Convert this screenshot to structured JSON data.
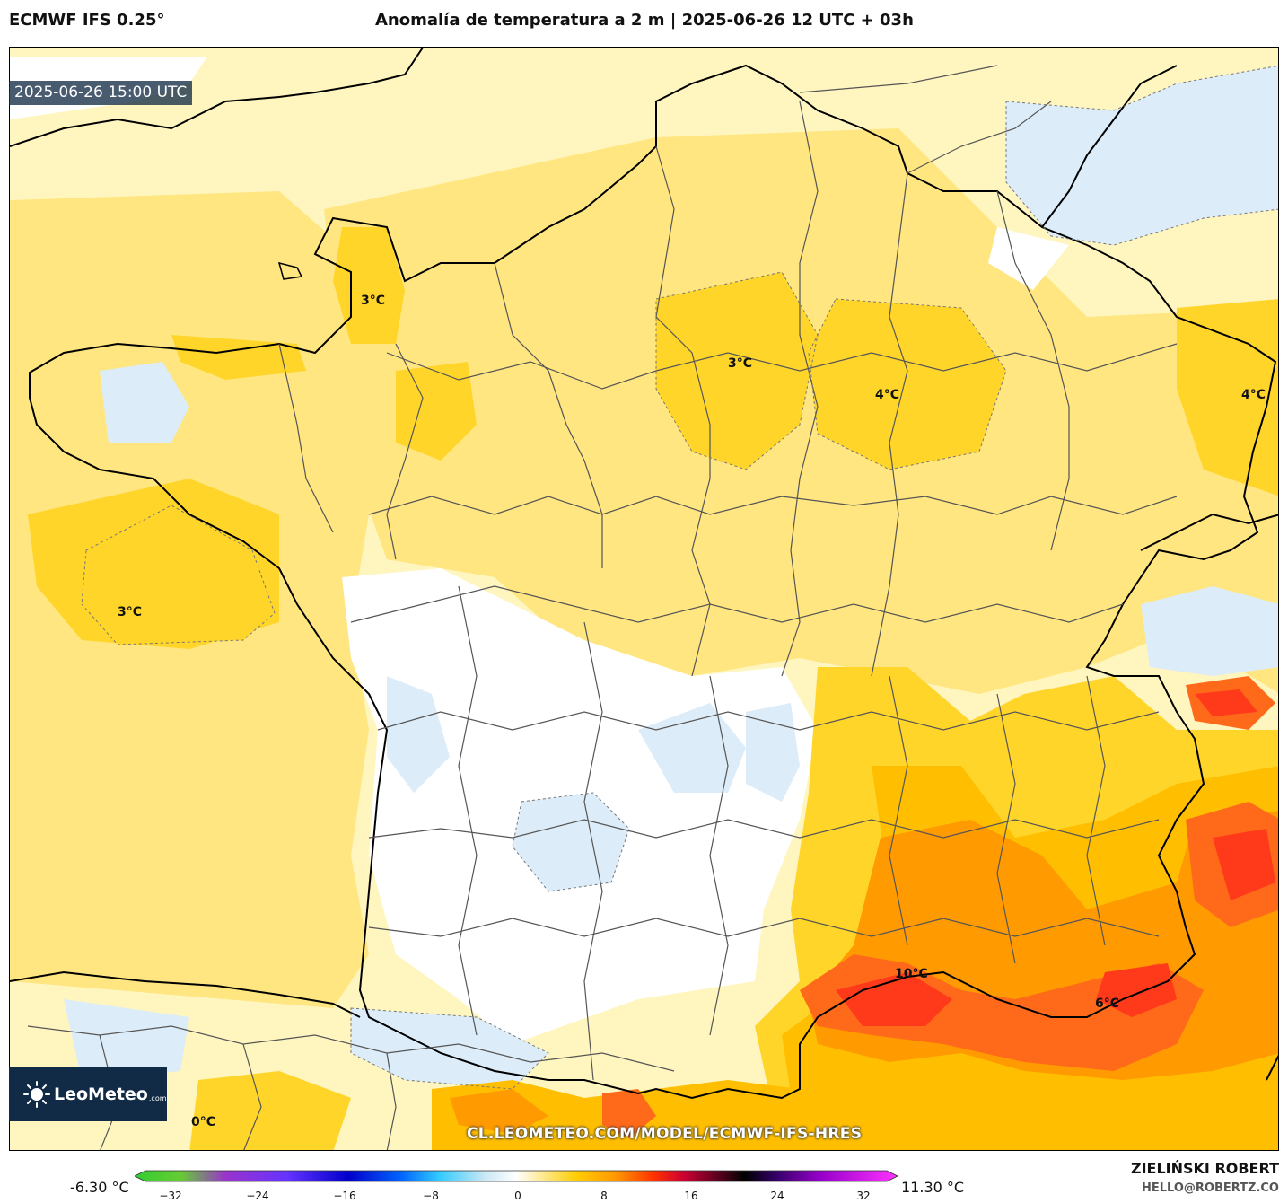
{
  "header": {
    "model": "ECMWF IFS 0.25°",
    "title": "Anomalía de temperatura a 2 m | 2025-06-26 12 UTC + 03h"
  },
  "map": {
    "valid_time": "2025-06-26 15:00 UTC",
    "labels": [
      "3°C",
      "3°C",
      "4°C",
      "4°C",
      "3°C",
      "10°C",
      "6°C",
      "0°C"
    ],
    "colors": {
      "cold_light": "#dcecf8",
      "neutral": "#ffffff",
      "warm_1": "#fff5bf",
      "warm_2": "#ffe680",
      "warm_3": "#ffd52a",
      "warm_4": "#ffbf00",
      "warm_5": "#ff9a00",
      "warm_6": "#ff6a1a",
      "warm_7": "#ff3a1a",
      "border_country": "#000000",
      "border_region": "#555555"
    }
  },
  "watermark": {
    "brand": "LeoMeteo",
    "brand_suffix": ".com",
    "url": "CL.LEOMETEO.COM/MODEL/ECMWF-IFS-HRES"
  },
  "colorbar": {
    "min_label": "-6.30 °C",
    "max_label": "11.30 °C",
    "ticks": [
      "−32",
      "−24",
      "−16",
      "−8",
      "0",
      "8",
      "16",
      "24",
      "32"
    ]
  },
  "footer": {
    "author": "ZIELIŃSKI ROBERT",
    "email": "HELLO@ROBERTZ.CO"
  }
}
